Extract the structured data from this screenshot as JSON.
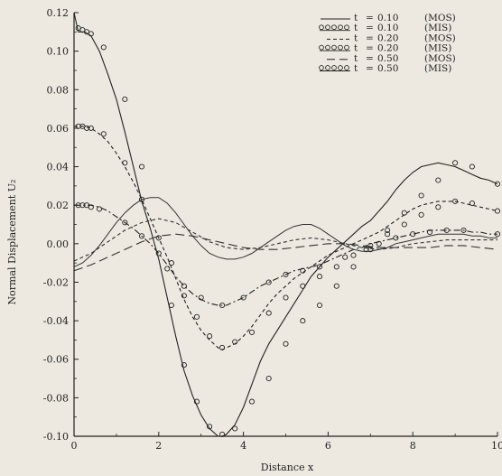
{
  "chart_data": {
    "type": "line",
    "title": "",
    "xlabel": "Distance x",
    "ylabel": "Normal Displacement U₂",
    "xlim": [
      0,
      10
    ],
    "ylim": [
      -0.1,
      0.12
    ],
    "x_ticks": [
      "0",
      "2",
      "4",
      "6",
      "8",
      "10"
    ],
    "y_ticks": [
      "0.12",
      "0.10",
      "0.08",
      "0.06",
      "0.04",
      "0.02",
      "0.00",
      "-0.02",
      "-0.04",
      "-0.06",
      "-0.08",
      "-0.10"
    ],
    "legend_position": "top-right",
    "grid": false,
    "legend": [
      {
        "line": "solid",
        "marker": "none",
        "t_label": "t",
        "equals": "=",
        "t_value": "0.10",
        "method": "(MOS)"
      },
      {
        "line": "none",
        "marker": "circle",
        "t_label": "t",
        "equals": "=",
        "t_value": "0.10",
        "method": "(MIS)"
      },
      {
        "line": "dashed-short",
        "marker": "none",
        "t_label": "t",
        "equals": "=",
        "t_value": "0.20",
        "method": "(MOS)"
      },
      {
        "line": "none",
        "marker": "circle",
        "t_label": "t",
        "equals": "=",
        "t_value": "0.20",
        "method": "(MIS)"
      },
      {
        "line": "dashed-long",
        "marker": "none",
        "t_label": "t",
        "equals": "=",
        "t_value": "0.50",
        "method": "(MOS)"
      },
      {
        "line": "none",
        "marker": "circle",
        "t_label": "t",
        "equals": "=",
        "t_value": "0.50",
        "method": "(MIS)"
      }
    ],
    "series": [
      {
        "style": "solid",
        "color": "#222222",
        "x": [
          0,
          0.1,
          0.25,
          0.4,
          0.6,
          0.8,
          1.0,
          1.2,
          1.4,
          1.6,
          1.8,
          2.0,
          2.2,
          2.4,
          2.6,
          2.8,
          3.0,
          3.2,
          3.4,
          3.5,
          3.6,
          3.8,
          4.0,
          4.2,
          4.4,
          4.6,
          4.8,
          5.0,
          5.2,
          5.4,
          5.6,
          5.8,
          6.0,
          6.2,
          6.4,
          6.6,
          6.8,
          7.0,
          7.2,
          7.4,
          7.6,
          7.8,
          8.0,
          8.2,
          8.4,
          8.6,
          8.8,
          9.0,
          9.2,
          9.4,
          9.6,
          9.8,
          10.0
        ],
        "y": [
          0.12,
          0.11,
          0.11,
          0.108,
          0.1,
          0.088,
          0.075,
          0.058,
          0.04,
          0.022,
          0.008,
          -0.008,
          -0.028,
          -0.048,
          -0.066,
          -0.079,
          -0.089,
          -0.096,
          -0.1,
          -0.1,
          -0.099,
          -0.094,
          -0.085,
          -0.073,
          -0.061,
          -0.052,
          -0.045,
          -0.038,
          -0.031,
          -0.024,
          -0.017,
          -0.012,
          -0.007,
          -0.003,
          0.001,
          0.005,
          0.009,
          0.012,
          0.017,
          0.022,
          0.028,
          0.033,
          0.037,
          0.04,
          0.041,
          0.042,
          0.041,
          0.04,
          0.038,
          0.036,
          0.034,
          0.033,
          0.031
        ]
      },
      {
        "style": "dashed-short",
        "color": "#222222",
        "x": [
          0,
          0.2,
          0.4,
          0.6,
          0.8,
          1.0,
          1.2,
          1.4,
          1.6,
          1.8,
          2.0,
          2.2,
          2.4,
          2.6,
          2.8,
          3.0,
          3.2,
          3.4,
          3.5,
          3.6,
          3.8,
          4.0,
          4.2,
          4.4,
          4.6,
          4.8,
          5.0,
          5.2,
          5.4,
          5.6,
          5.8,
          6.0,
          6.2,
          6.4,
          6.6,
          6.8,
          7.0,
          7.2,
          7.4,
          7.6,
          7.8,
          8.0,
          8.2,
          8.4,
          8.6,
          8.8,
          9.0,
          9.2,
          9.4,
          9.6,
          9.8,
          10.0
        ],
        "y": [
          0.061,
          0.061,
          0.06,
          0.057,
          0.053,
          0.047,
          0.04,
          0.032,
          0.023,
          0.013,
          0.003,
          -0.007,
          -0.018,
          -0.029,
          -0.038,
          -0.045,
          -0.05,
          -0.054,
          -0.055,
          -0.054,
          -0.052,
          -0.048,
          -0.043,
          -0.037,
          -0.031,
          -0.026,
          -0.022,
          -0.018,
          -0.015,
          -0.012,
          -0.009,
          -0.006,
          -0.004,
          -0.002,
          0.0,
          0.002,
          0.004,
          0.006,
          0.009,
          0.012,
          0.015,
          0.018,
          0.02,
          0.021,
          0.022,
          0.022,
          0.022,
          0.021,
          0.02,
          0.019,
          0.018,
          0.017
        ]
      },
      {
        "style": "dash-dot",
        "color": "#222222",
        "x": [
          0,
          0.2,
          0.4,
          0.6,
          0.8,
          1.0,
          1.2,
          1.4,
          1.6,
          1.8,
          2.0,
          2.2,
          2.4,
          2.6,
          2.8,
          3.0,
          3.2,
          3.4,
          3.5,
          3.6,
          3.8,
          4.0,
          4.2,
          4.4,
          4.6,
          4.8,
          5.0,
          5.2,
          5.4,
          5.6,
          5.8,
          6.0,
          6.2,
          6.4,
          6.6,
          6.8,
          7.0,
          7.2,
          7.4,
          7.6,
          7.8,
          8.0,
          8.2,
          8.4,
          8.6,
          8.8,
          9.0,
          9.2,
          9.4,
          9.6,
          9.8,
          10.0
        ],
        "y": [
          0.02,
          0.02,
          0.02,
          0.019,
          0.017,
          0.014,
          0.011,
          0.008,
          0.004,
          0.0,
          -0.005,
          -0.011,
          -0.017,
          -0.022,
          -0.026,
          -0.029,
          -0.031,
          -0.032,
          -0.032,
          -0.032,
          -0.03,
          -0.028,
          -0.025,
          -0.022,
          -0.02,
          -0.018,
          -0.016,
          -0.014,
          -0.013,
          -0.012,
          -0.011,
          -0.009,
          -0.007,
          -0.005,
          -0.003,
          -0.002,
          0.0,
          0.001,
          0.002,
          0.003,
          0.004,
          0.005,
          0.006,
          0.007,
          0.007,
          0.007,
          0.007,
          0.007,
          0.006,
          0.006,
          0.005,
          0.005
        ]
      },
      {
        "style": "solid-light",
        "color": "#333333",
        "x": [
          0,
          0.2,
          0.4,
          0.6,
          0.8,
          1.0,
          1.2,
          1.4,
          1.6,
          1.8,
          2.0,
          2.2,
          2.4,
          2.6,
          2.8,
          3.0,
          3.2,
          3.4,
          3.6,
          3.8,
          4.0,
          4.2,
          4.4,
          4.6,
          4.8,
          5.0,
          5.2,
          5.4,
          5.6,
          5.8,
          6.0,
          6.2,
          6.4,
          6.6,
          6.8,
          7.0,
          7.2,
          7.4,
          7.6,
          7.8,
          8.0,
          8.2,
          8.4,
          8.6,
          8.8,
          9.0,
          9.2,
          9.4,
          9.6,
          9.8,
          10.0
        ],
        "y": [
          -0.012,
          -0.01,
          -0.006,
          -0.001,
          0.005,
          0.011,
          0.016,
          0.02,
          0.023,
          0.024,
          0.024,
          0.021,
          0.016,
          0.01,
          0.004,
          -0.001,
          -0.005,
          -0.007,
          -0.008,
          -0.008,
          -0.007,
          -0.005,
          -0.002,
          0.001,
          0.004,
          0.007,
          0.009,
          0.01,
          0.01,
          0.008,
          0.005,
          0.002,
          -0.001,
          -0.003,
          -0.004,
          -0.004,
          -0.003,
          -0.002,
          0.0,
          0.001,
          0.002,
          0.003,
          0.004,
          0.005,
          0.005,
          0.005,
          0.005,
          0.004,
          0.004,
          0.003,
          0.003
        ]
      },
      {
        "style": "dashed-short",
        "color": "#333333",
        "x": [
          0,
          0.4,
          0.8,
          1.2,
          1.6,
          2.0,
          2.4,
          2.8,
          3.2,
          3.6,
          4.0,
          4.4,
          4.8,
          5.2,
          5.6,
          6.0,
          6.4,
          6.8,
          7.2,
          7.6,
          8.0,
          8.4,
          8.8,
          9.2,
          9.6,
          10.0
        ],
        "y": [
          -0.009,
          -0.005,
          0.001,
          0.007,
          0.011,
          0.013,
          0.011,
          0.006,
          0.001,
          -0.002,
          -0.003,
          -0.002,
          0.0,
          0.002,
          0.003,
          0.002,
          0.0,
          -0.002,
          -0.003,
          -0.002,
          0.0,
          0.001,
          0.002,
          0.002,
          0.002,
          0.002
        ]
      },
      {
        "style": "dashed-long",
        "color": "#333333",
        "x": [
          0,
          0.4,
          0.8,
          1.2,
          1.6,
          2.0,
          2.4,
          2.8,
          3.2,
          3.6,
          4.0,
          4.4,
          4.8,
          5.2,
          5.6,
          6.0,
          6.4,
          6.8,
          7.2,
          7.6,
          8.0,
          8.4,
          8.8,
          9.2,
          9.6,
          10.0
        ],
        "y": [
          -0.014,
          -0.011,
          -0.007,
          -0.003,
          0.001,
          0.004,
          0.005,
          0.004,
          0.002,
          0.0,
          -0.002,
          -0.003,
          -0.003,
          -0.002,
          -0.001,
          0.0,
          0.0,
          -0.001,
          -0.002,
          -0.002,
          -0.002,
          -0.002,
          -0.001,
          -0.001,
          -0.002,
          -0.003
        ]
      }
    ],
    "markers": [
      {
        "series_ref": "t = 0.10 (MIS)",
        "x": [
          0.1,
          0.2,
          0.3,
          0.4,
          0.7,
          1.2,
          1.6,
          2.0,
          2.3,
          2.6,
          2.9,
          3.2,
          3.5,
          3.8,
          4.2,
          4.6,
          5.0,
          5.4,
          5.8,
          6.2,
          6.6,
          7.0,
          7.4,
          7.8,
          8.2,
          8.6,
          9.0,
          9.4,
          10.0
        ],
        "y": [
          0.112,
          0.111,
          0.11,
          0.109,
          0.102,
          0.075,
          0.04,
          -0.005,
          -0.032,
          -0.063,
          -0.082,
          -0.095,
          -0.099,
          -0.096,
          -0.082,
          -0.07,
          -0.052,
          -0.04,
          -0.032,
          -0.022,
          -0.012,
          -0.003,
          0.007,
          0.016,
          0.025,
          0.033,
          0.042,
          0.04,
          0.031
        ]
      },
      {
        "series_ref": "t = 0.20 (MIS)",
        "x": [
          0.1,
          0.2,
          0.3,
          0.4,
          0.7,
          1.2,
          1.6,
          2.0,
          2.3,
          2.6,
          2.9,
          3.2,
          3.5,
          3.8,
          4.2,
          4.6,
          5.0,
          5.4,
          5.8,
          6.2,
          6.6,
          7.0,
          7.4,
          7.8,
          8.2,
          8.6,
          9.0,
          9.4,
          10.0
        ],
        "y": [
          0.061,
          0.061,
          0.06,
          0.06,
          0.057,
          0.042,
          0.023,
          0.003,
          -0.01,
          -0.027,
          -0.038,
          -0.048,
          -0.054,
          -0.051,
          -0.046,
          -0.036,
          -0.028,
          -0.022,
          -0.017,
          -0.012,
          -0.006,
          -0.001,
          0.005,
          0.01,
          0.015,
          0.019,
          0.022,
          0.021,
          0.017
        ]
      },
      {
        "series_ref": "t = 0.50 (MIS)",
        "x": [
          0.1,
          0.2,
          0.3,
          0.4,
          0.6,
          1.2,
          1.6,
          2.2,
          2.6,
          3.0,
          3.5,
          4.0,
          4.6,
          5.0,
          5.4,
          5.8,
          6.4,
          6.9,
          7.2,
          7.6,
          8.0,
          8.4,
          8.8,
          9.2,
          10.0
        ],
        "y": [
          0.02,
          0.02,
          0.02,
          0.019,
          0.018,
          0.011,
          0.004,
          -0.013,
          -0.022,
          -0.028,
          -0.032,
          -0.028,
          -0.02,
          -0.016,
          -0.014,
          -0.012,
          -0.007,
          -0.003,
          0.0,
          0.003,
          0.005,
          0.006,
          0.007,
          0.007,
          0.005
        ]
      }
    ]
  }
}
